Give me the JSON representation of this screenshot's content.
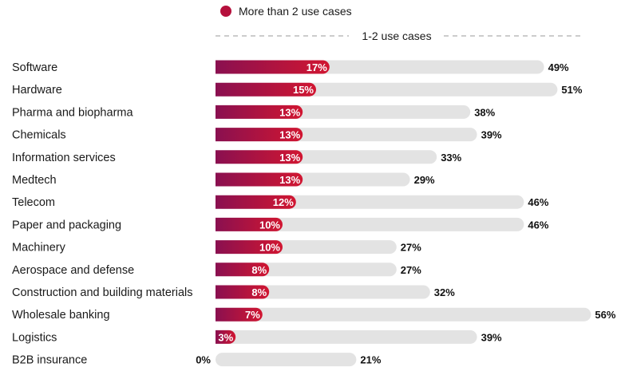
{
  "colors": {
    "primary_gradient_start": "#8a1050",
    "primary_gradient_end": "#d11631",
    "secondary": "#e3e3e3",
    "legend_dot": "#b5103c",
    "dashed_line": "#9a9a9a"
  },
  "legend": {
    "primary_label": "More than 2 use cases",
    "secondary_label": "1-2 use cases"
  },
  "chart_data": {
    "type": "bar",
    "orientation": "horizontal",
    "stacked": false,
    "categories": [
      "Software",
      "Hardware",
      "Pharma and biopharma",
      "Chemicals",
      "Information services",
      "Medtech",
      "Telecom",
      "Paper and packaging",
      "Machinery",
      "Aerospace and defense",
      "Construction and building materials",
      "Wholesale banking",
      "Logistics",
      "B2B insurance"
    ],
    "series": [
      {
        "name": "More than 2 use cases",
        "values": [
          17,
          15,
          13,
          13,
          13,
          13,
          12,
          10,
          10,
          8,
          8,
          7,
          3,
          0
        ],
        "labels": [
          "17%",
          "15%",
          "13%",
          "13%",
          "13%",
          "13%",
          "12%",
          "10%",
          "10%",
          "8%",
          "8%",
          "7%",
          "3%",
          "0%"
        ]
      },
      {
        "name": "1-2 use cases",
        "values": [
          49,
          51,
          38,
          39,
          33,
          29,
          46,
          46,
          27,
          27,
          32,
          56,
          39,
          21
        ],
        "labels": [
          "49%",
          "51%",
          "38%",
          "39%",
          "33%",
          "29%",
          "46%",
          "46%",
          "27%",
          "27%",
          "32%",
          "56%",
          "39%",
          "21%"
        ]
      }
    ],
    "xlim": [
      0,
      56
    ],
    "grid": false,
    "legend_position": "top"
  }
}
